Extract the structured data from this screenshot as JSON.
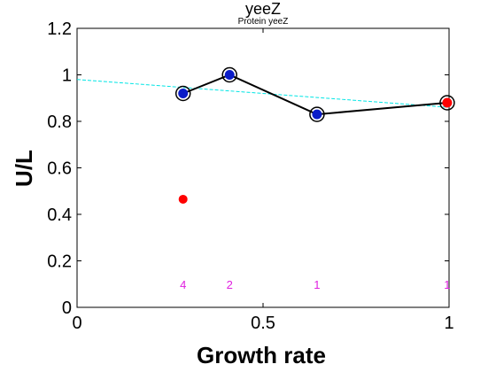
{
  "chart_data": {
    "type": "scatter",
    "title": "yeeZ",
    "subtitle": "Protein yeeZ",
    "xlabel": "Growth rate",
    "ylabel": "U/L",
    "xlim": [
      0,
      1
    ],
    "ylim": [
      0,
      1.2
    ],
    "xticks": [
      "0",
      "0.5",
      "1"
    ],
    "yticks": [
      "0",
      "0.2",
      "0.4",
      "0.6",
      "0.8",
      "1",
      "1.2"
    ],
    "grid": false,
    "colors": {
      "line": "#000000",
      "blue_point": "#0a1cc8",
      "red_point": "#ff0000",
      "fit_line": "#00e5e5",
      "count_text": "#e020e0"
    },
    "series": [
      {
        "style": "black-line-blue-points",
        "x": [
          0.285,
          0.41,
          0.645,
          0.995
        ],
        "y": [
          0.92,
          1.0,
          0.83,
          0.88
        ],
        "point_colors": [
          "blue_point",
          "blue_point",
          "blue_point",
          "red_point"
        ]
      },
      {
        "style": "red-point",
        "x": [
          0.285
        ],
        "y": [
          0.465
        ]
      },
      {
        "style": "dashed-fit",
        "x": [
          0,
          1
        ],
        "y": [
          0.98,
          0.86
        ]
      }
    ],
    "annotations": [
      {
        "x": 0.285,
        "text": "4"
      },
      {
        "x": 0.41,
        "text": "2"
      },
      {
        "x": 0.645,
        "text": "1"
      },
      {
        "x": 0.995,
        "text": "1"
      }
    ],
    "annotation_y": 0.1
  }
}
